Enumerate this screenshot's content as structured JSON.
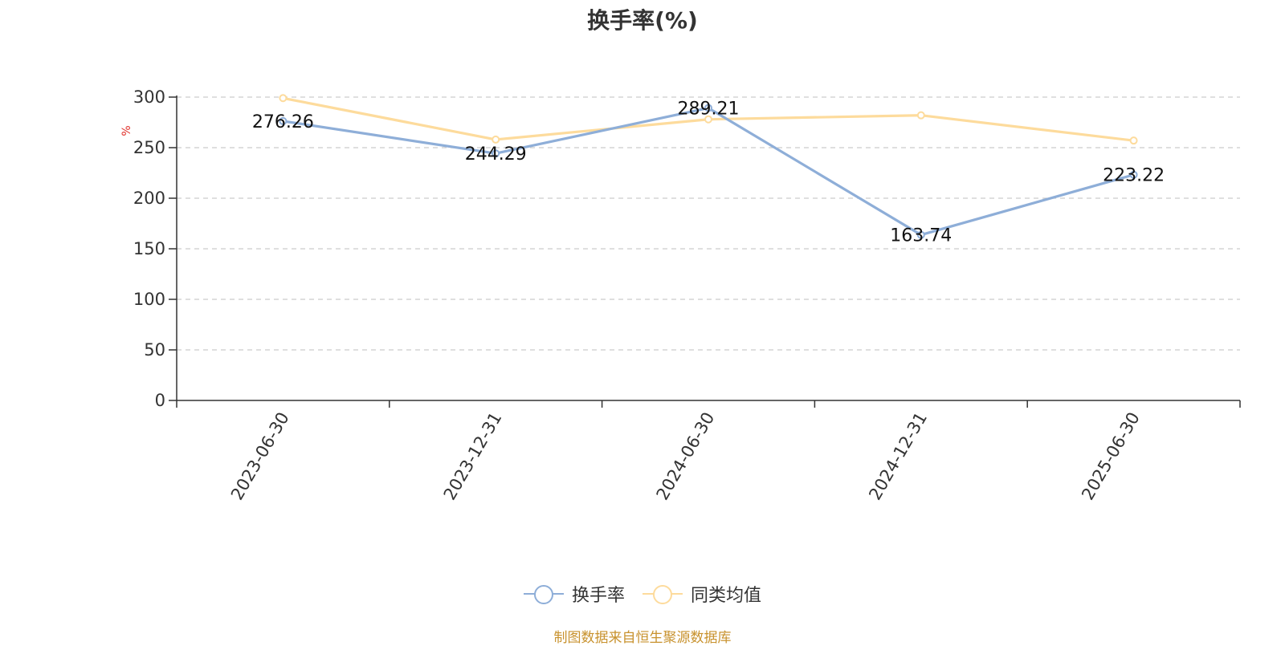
{
  "chart_data": {
    "type": "line",
    "title": "换手率(%)",
    "ylabel": "%",
    "categories": [
      "2023-06-30",
      "2023-12-31",
      "2024-06-30",
      "2024-12-31",
      "2025-06-30"
    ],
    "ylim": [
      0,
      300
    ],
    "yticks": [
      0,
      50,
      100,
      150,
      200,
      250,
      300
    ],
    "grid": true,
    "legend_position": "bottom",
    "series": [
      {
        "name": "换手率",
        "color": "#8eaed8",
        "values": [
          276.26,
          244.29,
          289.21,
          163.74,
          223.22
        ],
        "labels": [
          "276.26",
          "244.29",
          "289.21",
          "163.74",
          "223.22"
        ]
      },
      {
        "name": "同类均值",
        "color": "#fddb9c",
        "values": [
          299,
          258,
          278,
          282,
          257
        ]
      }
    ]
  },
  "source_note": "制图数据来自恒生聚源数据库"
}
